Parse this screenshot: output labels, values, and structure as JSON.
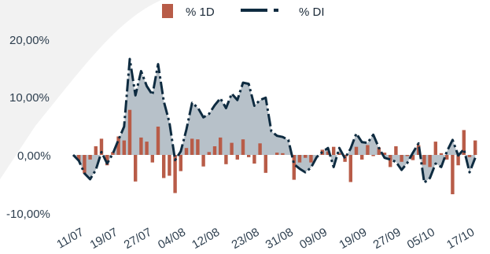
{
  "chart_data": {
    "type": "bar+area",
    "title": "",
    "xlabel": "",
    "ylabel": "",
    "ylim": [
      -10,
      20
    ],
    "y_ticks": [
      "20,00%",
      "10,00%",
      "0,00%",
      "-10,00%"
    ],
    "y_tick_values": [
      20,
      10,
      0,
      -10
    ],
    "x_tick_labels": [
      "11/07",
      "19/07",
      "27/07",
      "04/08",
      "12/08",
      "23/08",
      "31/08",
      "09/09",
      "19/09",
      "27/09",
      "05/10",
      "17/10"
    ],
    "x_tick_index": [
      2,
      8,
      14,
      20,
      26,
      33,
      39,
      45,
      52,
      58,
      64,
      71
    ],
    "legend_position": "top-center",
    "series": [
      {
        "name": "% 1D",
        "kind": "bar",
        "color": "#b85c48",
        "values": [
          0,
          -1,
          -3.2,
          -0.8,
          1.5,
          2.8,
          -1.8,
          0.5,
          3.2,
          2.5,
          7.8,
          -4.6,
          3,
          2.3,
          -1.3,
          4.9,
          -4,
          -3.6,
          -6.6,
          -2.8,
          1.2,
          2.8,
          2.7,
          -2,
          0.5,
          1.5,
          3,
          -1.6,
          2.1,
          -0.8,
          2.7,
          -0.4,
          -1.5,
          2,
          -3.1,
          0,
          0.4,
          0.3,
          0,
          -4.3,
          -1.3,
          -0.5,
          -1.3,
          0,
          0.9,
          0.6,
          1.4,
          0.3,
          -1.2,
          -4.7,
          1.4,
          -0.8,
          1.7,
          -0.2,
          1.3,
          0.4,
          -2.1,
          1.5,
          -1.2,
          -0.2,
          -0.9,
          1.7,
          -1.7,
          -2.1,
          2.3,
          0.3,
          -0.8,
          -6.8,
          -1.8,
          4.3,
          -0.4,
          2.5
        ],
        "bar_x_index": [
          0,
          1,
          2,
          3,
          4,
          5,
          6,
          7,
          8,
          9,
          10,
          11,
          12,
          13,
          14,
          15,
          16,
          17,
          18,
          19,
          20,
          21,
          22,
          23,
          24,
          25,
          26,
          27,
          28,
          29,
          30,
          31,
          32,
          33,
          34,
          35,
          36,
          37,
          38,
          39,
          40,
          41,
          42,
          43,
          44,
          45,
          46,
          47,
          48,
          49,
          50,
          51,
          52,
          53,
          54,
          55,
          56,
          57,
          58,
          59,
          60,
          61,
          62,
          63,
          64,
          65,
          66,
          67,
          68,
          69,
          70,
          71
        ]
      },
      {
        "name": "% DI",
        "kind": "area",
        "color": "#0e2b40",
        "fill": "#b3bec6",
        "values": [
          0,
          -1,
          -3.2,
          -4.2,
          -2.6,
          0.5,
          -1.5,
          0.2,
          2.6,
          4.9,
          16.6,
          10.3,
          14.5,
          11.9,
          10.4,
          15.7,
          9.3,
          5.6,
          -0.9,
          0.6,
          4.4,
          9,
          8.2,
          6.5,
          7.1,
          8.6,
          9.8,
          8.1,
          10.6,
          9.5,
          12.5,
          12.3,
          8.5,
          9.5,
          9.9,
          4.1,
          3.3,
          3.1,
          2.6,
          -1.6,
          -2.4,
          -3,
          -2.2,
          -0.4,
          0.5,
          1.2,
          -2.1,
          1.2,
          -0.6,
          1.1,
          3.7,
          2.2,
          2.1,
          3.5,
          1.2,
          -0.5,
          -0.8,
          -1.2,
          -2.6,
          -1.4,
          0.4,
          2,
          -4.8,
          -4,
          -1.5,
          -2.1,
          0.6,
          2.6,
          -0.1,
          1,
          -3,
          -0.5
        ],
        "x_index": [
          0,
          1,
          2,
          3,
          4,
          5,
          6,
          7,
          8,
          9,
          10,
          11,
          12,
          13,
          14,
          15,
          16,
          17,
          18,
          19,
          20,
          21,
          22,
          23,
          24,
          25,
          26,
          27,
          28,
          29,
          30,
          31,
          32,
          33,
          34,
          35,
          36,
          37,
          38,
          39,
          40,
          41,
          42,
          43,
          44,
          45,
          46,
          47,
          48,
          49,
          50,
          51,
          52,
          53,
          54,
          55,
          56,
          57,
          58,
          59,
          60,
          61,
          62,
          63,
          64,
          65,
          66,
          67,
          68,
          69,
          70,
          71
        ]
      }
    ]
  }
}
